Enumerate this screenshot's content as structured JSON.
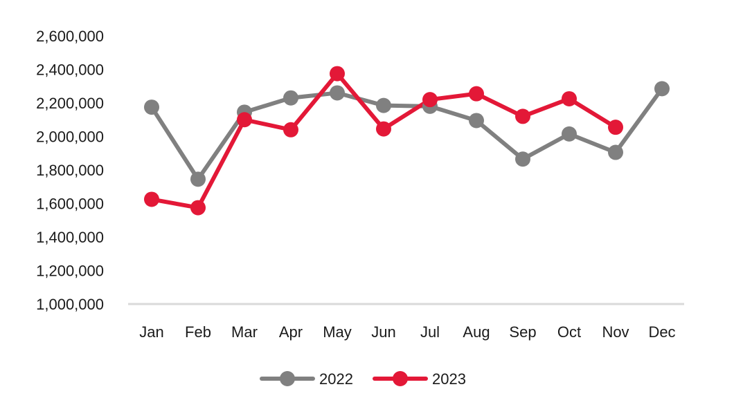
{
  "chart_data": {
    "type": "line",
    "title": "",
    "xlabel": "",
    "ylabel": "",
    "categories": [
      "Jan",
      "Feb",
      "Mar",
      "Apr",
      "May",
      "Jun",
      "Jul",
      "Aug",
      "Sep",
      "Oct",
      "Nov",
      "Dec"
    ],
    "y_ticks": [
      "1,000,000",
      "1,200,000",
      "1,400,000",
      "1,600,000",
      "1,800,000",
      "2,000,000",
      "2,200,000",
      "2,400,000",
      "2,600,000"
    ],
    "y_tick_values": [
      1000000,
      1200000,
      1400000,
      1600000,
      1800000,
      2000000,
      2200000,
      2400000,
      2600000
    ],
    "ylim": [
      1000000,
      2600000
    ],
    "grid": false,
    "legend_position": "bottom-center",
    "series": [
      {
        "name": "2022",
        "color": "#808080",
        "values": [
          2175000,
          1745000,
          2145000,
          2230000,
          2260000,
          2185000,
          2180000,
          2095000,
          1865000,
          2015000,
          1905000,
          2285000
        ]
      },
      {
        "name": "2023",
        "color": "#e31837",
        "values": [
          1625000,
          1575000,
          2100000,
          2040000,
          2375000,
          2045000,
          2220000,
          2255000,
          2120000,
          2225000,
          2055000,
          null
        ]
      }
    ]
  }
}
